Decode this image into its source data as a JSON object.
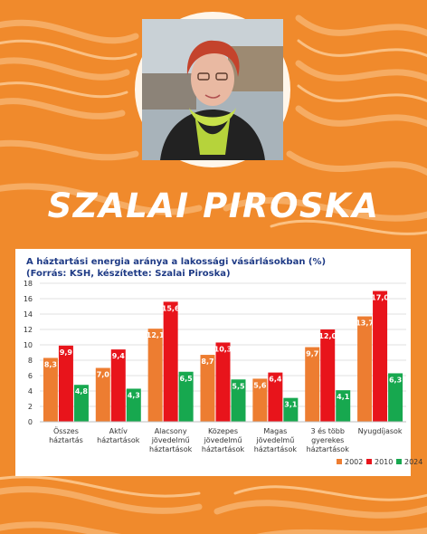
{
  "name": "SZALAI PIROSKA",
  "colors": {
    "background": "#f08a2c",
    "s2002": "#ed7d31",
    "s2010": "#e8141b",
    "s2024": "#17a84f"
  },
  "chart_data": {
    "type": "bar",
    "title_line1": "A háztartási energia aránya a lakossági vásárlásokban (%)",
    "title_line2": "(Forrás: KSH, készítette: Szalai Piroska)",
    "categories": [
      [
        "Összes",
        "háztartás"
      ],
      [
        "Aktív",
        "háztartások"
      ],
      [
        "Alacsony",
        "jövedelmű",
        "háztartások"
      ],
      [
        "Közepes",
        "jövedelmű",
        "háztartások"
      ],
      [
        "Magas",
        "jövedelmű",
        "háztartások"
      ],
      [
        "3 és több",
        "gyerekes",
        "háztartások"
      ],
      [
        "Nyugdíjasok"
      ]
    ],
    "series": [
      {
        "name": "2002",
        "values": [
          8.3,
          7.0,
          12.1,
          8.7,
          5.6,
          9.7,
          13.7
        ],
        "labels": [
          "8,3",
          "7,0",
          "12,1",
          "8,7",
          "5,6",
          "9,7",
          "13,7"
        ]
      },
      {
        "name": "2010",
        "values": [
          9.9,
          9.4,
          15.6,
          10.3,
          6.4,
          12.0,
          17.0
        ],
        "labels": [
          "9,9",
          "9,4",
          "15,6",
          "10,3",
          "6,4",
          "12,0",
          "17,0"
        ]
      },
      {
        "name": "2024",
        "values": [
          4.8,
          4.3,
          6.5,
          5.5,
          3.1,
          4.1,
          6.3
        ],
        "labels": [
          "4,8",
          "4,3",
          "6,5",
          "5,5",
          "3,1",
          "4,1",
          "6,3"
        ]
      }
    ],
    "ylim": [
      0,
      18
    ],
    "yticks": [
      0,
      2,
      4,
      6,
      8,
      10,
      12,
      14,
      16,
      18
    ],
    "grid": true,
    "legend": "bottom-right"
  }
}
